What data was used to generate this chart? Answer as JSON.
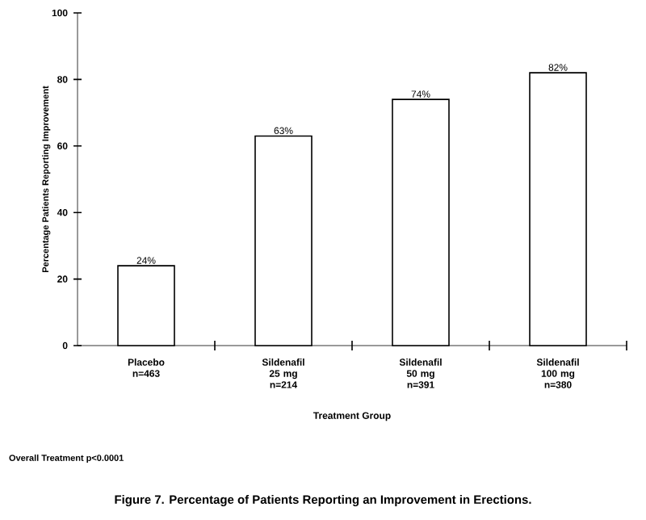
{
  "chart_data": {
    "type": "bar",
    "title": "Figure 7. Percentage of Patients Reporting an Improvement in Erections.",
    "xlabel": "Treatment Group",
    "ylabel": "Percentage Patients Reporting Improvement",
    "categories": [
      "Placebo n=463",
      "Sildenafil 25 mg n=214",
      "Sildenafil 50 mg n=391",
      "Sildenafil 100 mg n=380"
    ],
    "values": [
      24,
      63,
      74,
      82
    ],
    "value_labels": [
      "24%",
      "63%",
      "74%",
      "82%"
    ],
    "color": "#ffffff",
    "ylim": [
      0,
      100
    ],
    "yticks": [
      0,
      20,
      40,
      60,
      80,
      100
    ],
    "annotations": [
      "Overall Treatment p<0.0001"
    ]
  }
}
